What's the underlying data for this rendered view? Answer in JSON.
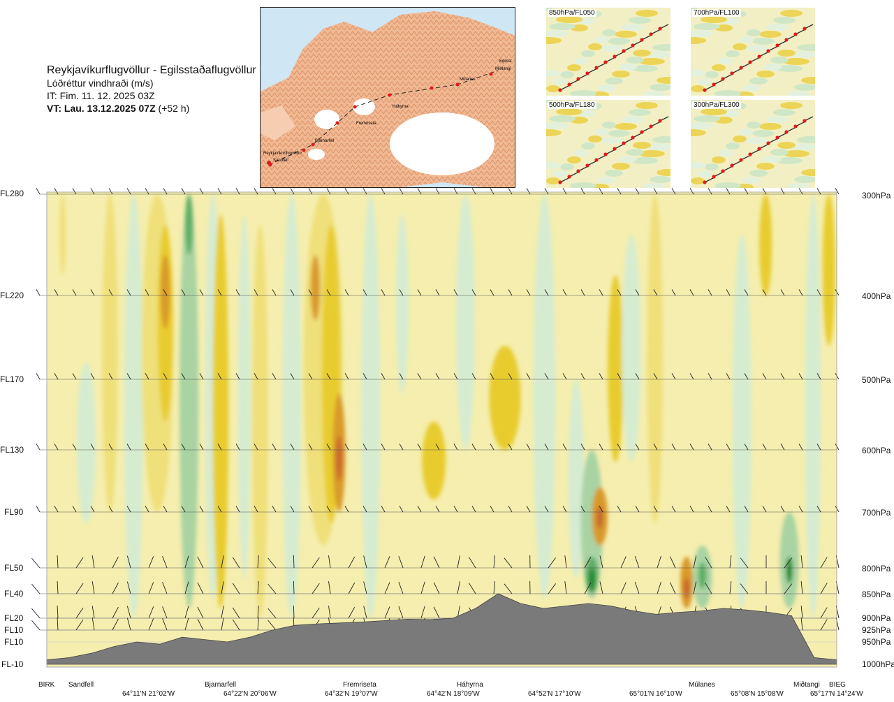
{
  "header": {
    "title": "Reykjavíkurflugvöllur - Egilsstaðaflugvöllur",
    "subtitle": "Lóðréttur vindhraði (m/s)",
    "issue_time": "IT: Fim. 11. 12. 2025 03Z",
    "valid_time_label": "VT: Lau. 13.12.2025 07Z",
    "valid_time_offset": "(+52 h)"
  },
  "route_map": {
    "stations": [
      "Reykjavíkurflugvöllur",
      "Sandfell",
      "Bjarnarfell",
      "Fremriseta",
      "Háhyrna",
      "Múlanes",
      "Egilsst",
      "Miðtangi"
    ]
  },
  "minimaps": [
    {
      "label": "850hPa/FL050"
    },
    {
      "label": "700hPa/FL100"
    },
    {
      "label": "500hPa/FL180"
    },
    {
      "label": "300hPa/FL300"
    }
  ],
  "levels": {
    "flight_levels": [
      "FL280",
      "FL220",
      "FL170",
      "FL130",
      "FL90",
      "FL50",
      "FL40",
      "FL20",
      "FL10",
      "FL10",
      "FL-10"
    ],
    "pressures": [
      "300hPa",
      "400hPa",
      "500hPa",
      "600hPa",
      "700hPa",
      "800hPa",
      "850hPa",
      "900hPa",
      "925hPa",
      "950hPa",
      "1000hPa"
    ]
  },
  "x_axis": {
    "waypoints": [
      "BIRK",
      "Sandfell",
      "Bjarnarfell",
      "Fremriseta",
      "Háhyrna",
      "Múlanes",
      "Miðtangi",
      "BIEG"
    ],
    "coordinates": [
      "64°11'N 21°02'W",
      "64°22'N 20°06'W",
      "64°32'N 19°07'W",
      "64°42'N 18°09'W",
      "64°52'N 17°10'W",
      "65°01'N 16°10'W",
      "65°08'N 15°08'W",
      "65°17'N 14°24'W"
    ]
  },
  "colors": {
    "terrain": "#7a7a7a",
    "background_field": "#f5eeae",
    "updraft_weak": "#efe07a",
    "updraft_mid": "#e8cc2e",
    "updraft_strong": "#d99a2a",
    "updraft_max": "#c8672e",
    "downdraft_weak": "#d6ecd0",
    "downdraft_mid": "#a9d3a3",
    "downdraft_strong": "#5fae66",
    "downdraft_max": "#1f8b2f",
    "route_line": "#222222",
    "route_points": "#e01b1b",
    "sea": "#cfe6f5",
    "land": "#f0b68d",
    "glacier": "#ffffff"
  },
  "chart_data": {
    "type": "heatmap",
    "title": "Reykjavíkurflugvöllur - Egilsstaðaflugvöllur",
    "quantity": "Lóðréttur vindhraði (m/s)",
    "x_categories": [
      "BIRK",
      "Sandfell",
      "Bjarnarfell",
      "Fremriseta",
      "Háhyrna",
      "Múlanes",
      "Miðtangi",
      "BIEG"
    ],
    "y_levels_hPa": [
      300,
      400,
      500,
      600,
      700,
      800,
      850,
      900,
      925,
      950,
      1000
    ],
    "wind_barb_rows_hPa": [
      300,
      400,
      500,
      600,
      700,
      800,
      850,
      900,
      925
    ],
    "terrain_profile_hPa": [
      990,
      985,
      975,
      960,
      950,
      955,
      940,
      945,
      950,
      940,
      925,
      915,
      912,
      910,
      908,
      905,
      902,
      903,
      900,
      880,
      850,
      870,
      880,
      875,
      870,
      875,
      885,
      892,
      888,
      885,
      880,
      883,
      888,
      895,
      985,
      990
    ],
    "updraft_cores": [
      {
        "x": 0.15,
        "p": 400,
        "strength": "strong"
      },
      {
        "x": 0.37,
        "p": 600,
        "strength": "max"
      },
      {
        "x": 0.7,
        "p": 700,
        "strength": "max"
      },
      {
        "x": 0.81,
        "p": 850,
        "strength": "max"
      }
    ],
    "downdraft_cores": [
      {
        "x": 0.18,
        "p": 300,
        "strength": "strong"
      },
      {
        "x": 0.69,
        "p": 830,
        "strength": "max"
      },
      {
        "x": 0.94,
        "p": 800,
        "strength": "max"
      }
    ],
    "grid": true,
    "legend": "none"
  }
}
